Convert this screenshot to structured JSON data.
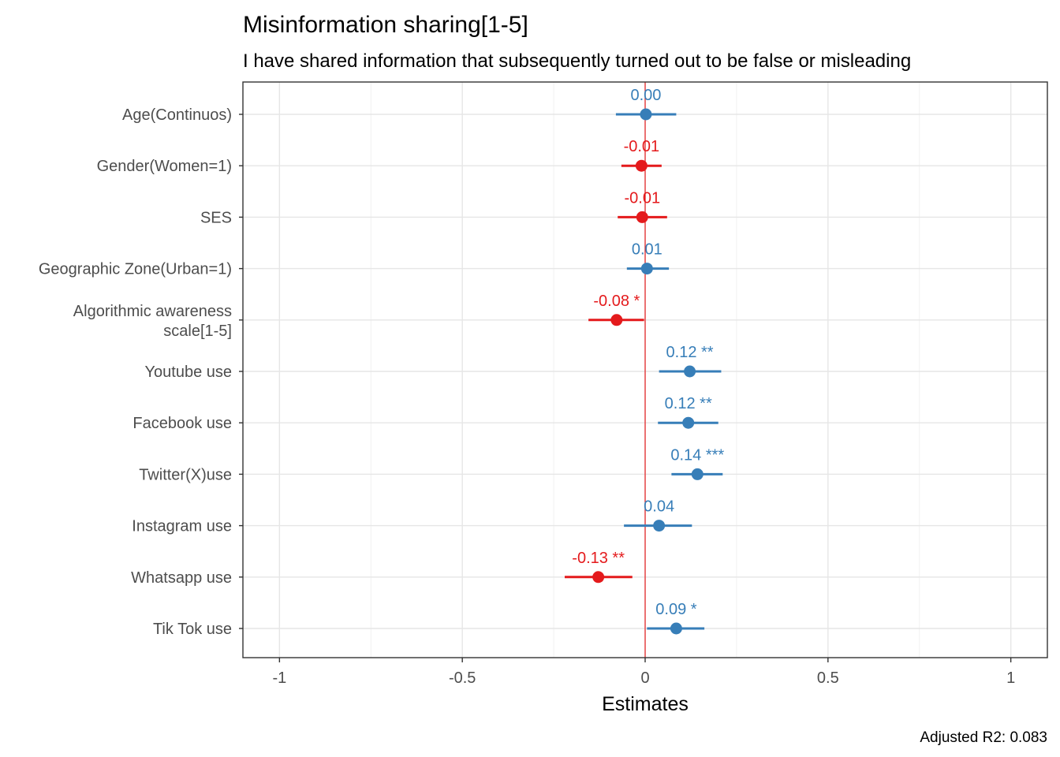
{
  "chart_data": {
    "type": "forest",
    "title": "Misinformation sharing[1-5]",
    "subtitle": "I have shared information that subsequently turned out to be false or misleading",
    "xlabel": "Estimates",
    "caption": "Adjusted R2: 0.083",
    "xlim": [
      -1.1,
      1.1
    ],
    "xticks": [
      -1,
      -0.5,
      0,
      0.5,
      1
    ],
    "xtick_labels": [
      "-1",
      "-0.5",
      "0",
      "0.5",
      "1"
    ],
    "reference_line": 0,
    "colors": {
      "positive": "#377eb8",
      "negative": "#e41a1c",
      "reference": "#e41a1c"
    },
    "grid": true,
    "terms": [
      {
        "label": [
          "Age(Continuos)"
        ],
        "estimate": 0.002,
        "ci": [
          -0.08,
          0.085
        ],
        "text": "0.00",
        "sign": "positive"
      },
      {
        "label": [
          "Gender(Women=1)"
        ],
        "estimate": -0.01,
        "ci": [
          -0.065,
          0.045
        ],
        "text": "-0.01",
        "sign": "negative"
      },
      {
        "label": [
          "SES"
        ],
        "estimate": -0.008,
        "ci": [
          -0.075,
          0.06
        ],
        "text": "-0.01",
        "sign": "negative"
      },
      {
        "label": [
          "Geographic Zone(Urban=1)"
        ],
        "estimate": 0.005,
        "ci": [
          -0.05,
          0.065
        ],
        "text": "0.01",
        "sign": "positive"
      },
      {
        "label": [
          "Algorithmic awareness",
          "scale[1-5]"
        ],
        "estimate": -0.078,
        "ci": [
          -0.155,
          -0.003
        ],
        "text": "-0.08 *",
        "sign": "negative"
      },
      {
        "label": [
          "Youtube use"
        ],
        "estimate": 0.122,
        "ci": [
          0.038,
          0.208
        ],
        "text": "0.12 **",
        "sign": "positive"
      },
      {
        "label": [
          "Facebook use"
        ],
        "estimate": 0.118,
        "ci": [
          0.035,
          0.2
        ],
        "text": "0.12 **",
        "sign": "positive"
      },
      {
        "label": [
          "Twitter(X)use"
        ],
        "estimate": 0.143,
        "ci": [
          0.072,
          0.212
        ],
        "text": "0.14 ***",
        "sign": "positive"
      },
      {
        "label": [
          "Instagram use"
        ],
        "estimate": 0.038,
        "ci": [
          -0.058,
          0.128
        ],
        "text": "0.04",
        "sign": "positive"
      },
      {
        "label": [
          "Whatsapp use"
        ],
        "estimate": -0.128,
        "ci": [
          -0.22,
          -0.035
        ],
        "text": "-0.13 **",
        "sign": "negative"
      },
      {
        "label": [
          "Tik Tok use"
        ],
        "estimate": 0.085,
        "ci": [
          0.005,
          0.162
        ],
        "text": "0.09 *",
        "sign": "positive"
      }
    ]
  }
}
